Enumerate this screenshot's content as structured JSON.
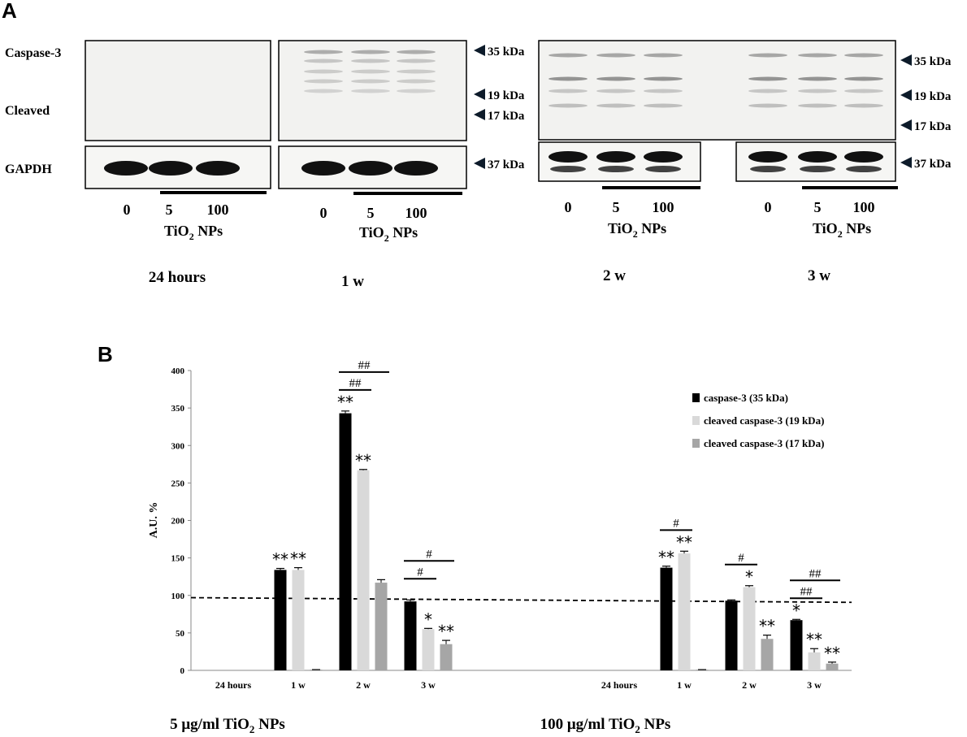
{
  "panel_a": {
    "letter": "A",
    "row_labels": {
      "caspase": "Caspase-3",
      "cleaved": "Cleaved",
      "gapdh": "GAPDH"
    },
    "marker_labels": {
      "k35": "35 kDa",
      "k19": "19 kDa",
      "k17": "17 kDa",
      "k37": "37 kDa"
    },
    "lanes": [
      "0",
      "5",
      "100"
    ],
    "treatment": {
      "main": "TiO",
      "sub": "2",
      "rest": " NPs"
    },
    "timepoints": [
      "24 hours",
      "1 w",
      "2 w",
      "3 w"
    ]
  },
  "panel_b": {
    "letter": "B",
    "ylabel": "A.U. %",
    "group_labels": [
      "5 μg/ml TiO",
      "100 μg/ml TiO"
    ],
    "group_sub": "2",
    "group_rest": " NPs"
  },
  "chart_data": {
    "type": "bar",
    "ylabel": "A.U. %",
    "ylim": [
      0,
      400
    ],
    "yticks": [
      0,
      50,
      100,
      150,
      200,
      250,
      300,
      350,
      400
    ],
    "reference_line": 97,
    "categories": [
      "24 hours",
      "1 w",
      "2 w",
      "3 w",
      "24 hours",
      "1 w",
      "2 w",
      "3 w"
    ],
    "groups": [
      {
        "name": "5 μg/ml TiO2 NPs",
        "category_indices": [
          0,
          1,
          2,
          3
        ]
      },
      {
        "name": "100 μg/ml TiO2 NPs",
        "category_indices": [
          4,
          5,
          6,
          7
        ]
      }
    ],
    "series": [
      {
        "name": "caspase-3 (35 kDa)",
        "color": "#000000",
        "values": [
          0,
          134,
          343,
          92,
          0,
          137,
          93,
          67
        ],
        "errors": [
          0,
          2,
          3,
          2,
          0,
          2,
          1,
          1
        ]
      },
      {
        "name": "cleaved caspase-3 (19 kDa)",
        "color": "#d9d9d9",
        "values": [
          0,
          134,
          267,
          55,
          0,
          156,
          111,
          24
        ],
        "errors": [
          0,
          3,
          1,
          1,
          0,
          3,
          2,
          5
        ]
      },
      {
        "name": "cleaved caspase-3 (17 kDa)",
        "color": "#a6a6a6",
        "values": [
          0,
          1,
          117,
          35,
          0,
          1,
          42,
          9
        ],
        "errors": [
          0,
          0,
          4,
          5,
          0,
          0,
          5,
          2
        ]
      }
    ],
    "significance": [
      {
        "category": 1,
        "series": 0,
        "label": "**"
      },
      {
        "category": 1,
        "series": 1,
        "label": "**"
      },
      {
        "category": 2,
        "series": 0,
        "label": "**"
      },
      {
        "category": 2,
        "series": 1,
        "label": "**"
      },
      {
        "category": 3,
        "series": 1,
        "label": "*"
      },
      {
        "category": 3,
        "series": 2,
        "label": "**"
      },
      {
        "category": 5,
        "series": 0,
        "label": "**"
      },
      {
        "category": 5,
        "series": 1,
        "label": "**"
      },
      {
        "category": 6,
        "series": 1,
        "label": "*"
      },
      {
        "category": 6,
        "series": 2,
        "label": "**"
      },
      {
        "category": 7,
        "series": 0,
        "label": "*"
      },
      {
        "category": 7,
        "series": 1,
        "label": "**"
      },
      {
        "category": 7,
        "series": 2,
        "label": "**"
      }
    ],
    "comparisons": [
      {
        "category": 2,
        "label": "##",
        "from": 0,
        "to": 1
      },
      {
        "category": 2,
        "label": "##",
        "from": 0,
        "to": 2
      },
      {
        "category": 3,
        "label": "#",
        "from": 0,
        "to": 1
      },
      {
        "category": 3,
        "label": "#",
        "from": 0,
        "to": 2
      },
      {
        "category": 5,
        "label": "#",
        "from": 0,
        "to": 1
      },
      {
        "category": 6,
        "label": "#",
        "from": 0,
        "to": 1
      },
      {
        "category": 7,
        "label": "##",
        "from": 0,
        "to": 1
      },
      {
        "category": 7,
        "label": "##",
        "from": 0,
        "to": 2
      }
    ],
    "legend_position": "top-right",
    "grid": false
  }
}
